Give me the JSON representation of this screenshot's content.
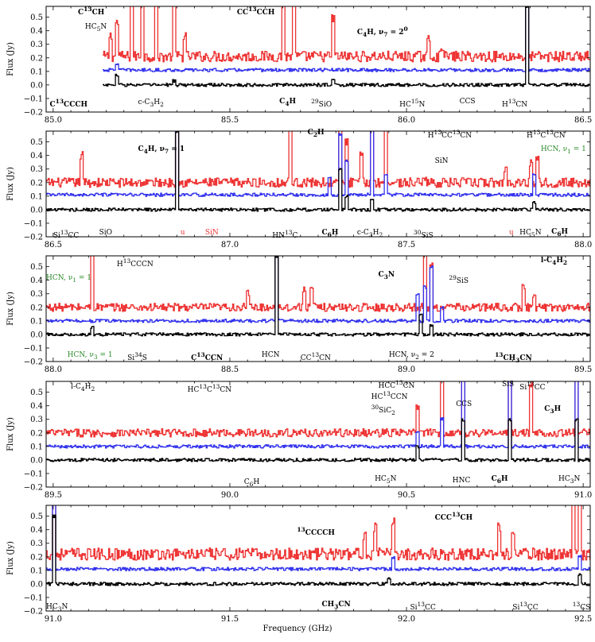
{
  "figure": {
    "xlabel": "Frequency (GHz)",
    "colors": {
      "top": "#ee3333",
      "mid": "#3333ee",
      "bottom": "#000000",
      "green": "#2a8a2a"
    }
  },
  "chart_data": [
    {
      "type": "line",
      "xlim": [
        84.98,
        86.52
      ],
      "ylim": [
        -0.2,
        0.58
      ],
      "ylabel": "Flux (Jy)",
      "xticks": [
        85.0,
        85.5,
        86.0,
        86.5
      ],
      "xtick_labels": [
        "85.0",
        "85.5",
        "86.0",
        "86.5"
      ],
      "yticks": [
        -0.2,
        -0.1,
        0.0,
        0.1,
        0.2,
        0.3,
        0.4,
        0.5
      ],
      "ytick_labels": [
        "−0.2",
        "−0.1",
        "0.0",
        "0.1",
        "0.2",
        "0.3",
        "0.4",
        "0.5"
      ],
      "series": [
        {
          "color": "#ee3333",
          "x_start": 85.14,
          "x_end": 86.52,
          "baseline": 0.21,
          "noise": 0.04,
          "peaks": [
            [
              85.16,
              0.15
            ],
            [
              85.18,
              0.25
            ],
            [
              85.22,
              0.6
            ],
            [
              85.25,
              0.6
            ],
            [
              85.29,
              0.6
            ],
            [
              85.34,
              0.6
            ],
            [
              85.37,
              0.15
            ],
            [
              85.65,
              0.6
            ],
            [
              85.68,
              0.6
            ],
            [
              85.79,
              0.28
            ],
            [
              86.06,
              0.12
            ],
            [
              86.1,
              0.08
            ],
            [
              86.34,
              0.6
            ]
          ]
        },
        {
          "color": "#3333ee",
          "x_start": 85.14,
          "x_end": 86.52,
          "baseline": 0.11,
          "noise": 0.012,
          "peaks": [
            [
              85.18,
              0.05
            ],
            [
              86.34,
              0.6
            ]
          ]
        },
        {
          "color": "#000000",
          "x_start": 85.14,
          "x_end": 86.52,
          "baseline": 0.0,
          "noise": 0.012,
          "peaks": [
            [
              85.18,
              0.07
            ],
            [
              85.34,
              0.03
            ],
            [
              85.79,
              0.05
            ],
            [
              86.34,
              0.58
            ]
          ]
        }
      ],
      "annotations": [
        {
          "html": "C<sup>13</sup>CH",
          "x": 85.07,
          "y": 0.54,
          "bold": true
        },
        {
          "html": "CC<sup>13</sup>CCH",
          "x": 85.52,
          "y": 0.54,
          "bold": true
        },
        {
          "html": "HC<sub>5</sub>N",
          "x": 85.09,
          "y": 0.41
        },
        {
          "html": "C<sub>4</sub>H, ν<sub>7</sub> = 2<sup>0</sup>",
          "x": 85.86,
          "y": 0.39,
          "bold": true
        },
        {
          "html": "C<sup>13</sup>CCCH",
          "x": 84.99,
          "y": -0.14,
          "bold": true
        },
        {
          "html": "c-C<sub>3</sub>H<sub>2</sub>",
          "x": 85.24,
          "y": -0.15
        },
        {
          "html": "C<sub>4</sub>H",
          "x": 85.64,
          "y": -0.14,
          "bold": true
        },
        {
          "html": "<sup>29</sup>SiO",
          "x": 85.73,
          "y": -0.14
        },
        {
          "html": "HC<sup>15</sup>N",
          "x": 85.98,
          "y": -0.14
        },
        {
          "html": "CCS",
          "x": 86.15,
          "y": -0.14
        },
        {
          "html": "H<sup>13</sup>CN",
          "x": 86.27,
          "y": -0.14
        }
      ]
    },
    {
      "type": "line",
      "xlim": [
        86.48,
        88.02
      ],
      "ylim": [
        -0.2,
        0.58
      ],
      "ylabel": "Flux (Jy)",
      "xticks": [
        86.5,
        87.0,
        87.5,
        88.0
      ],
      "xtick_labels": [
        "86.5",
        "87.0",
        "87.5",
        "88.0"
      ],
      "yticks": [
        -0.2,
        -0.1,
        0.0,
        0.1,
        0.2,
        0.3,
        0.4,
        0.5
      ],
      "ytick_labels": [
        "−0.2",
        "−0.1",
        "0.0",
        "0.1",
        "0.2",
        "0.3",
        "0.4",
        "0.5"
      ],
      "series": [
        {
          "color": "#ee3333",
          "x_start": 86.48,
          "x_end": 88.02,
          "baseline": 0.2,
          "noise": 0.035,
          "peaks": [
            [
              86.58,
              0.2
            ],
            [
              86.85,
              0.6
            ],
            [
              87.17,
              0.6
            ],
            [
              87.31,
              0.45
            ],
            [
              87.33,
              0.3
            ],
            [
              87.37,
              0.2
            ],
            [
              87.4,
              0.6
            ],
            [
              87.44,
              0.6
            ],
            [
              87.55,
              0.05
            ],
            [
              87.78,
              0.1
            ],
            [
              87.85,
              0.15
            ],
            [
              87.87,
              0.2
            ]
          ]
        },
        {
          "color": "#3333ee",
          "x_start": 86.48,
          "x_end": 88.02,
          "baseline": 0.11,
          "noise": 0.012,
          "peaks": [
            [
              86.85,
              0.6
            ],
            [
              87.28,
              0.12
            ],
            [
              87.31,
              0.45
            ],
            [
              87.33,
              0.25
            ],
            [
              87.4,
              0.6
            ],
            [
              87.44,
              0.15
            ],
            [
              87.86,
              0.15
            ]
          ]
        },
        {
          "color": "#000000",
          "x_start": 86.48,
          "x_end": 88.02,
          "baseline": 0.0,
          "noise": 0.012,
          "peaks": [
            [
              86.85,
              0.58
            ],
            [
              87.31,
              0.3
            ],
            [
              87.33,
              0.1
            ],
            [
              87.4,
              0.08
            ],
            [
              87.86,
              0.05
            ]
          ]
        }
      ],
      "annotations": [
        {
          "html": "C<sub>4</sub>H, ν<sub>7</sub> = 1",
          "x": 86.74,
          "y": 0.43,
          "bold": true
        },
        {
          "html": "C<sub>2</sub>H",
          "x": 87.22,
          "y": 0.55,
          "bold": true
        },
        {
          "html": "H<sup>13</sup>CC<sup>13</sup>CN",
          "x": 87.56,
          "y": 0.55
        },
        {
          "html": "H<sup>13</sup>C<sup>13</sup>CN",
          "x": 87.84,
          "y": 0.55
        },
        {
          "html": "SiN",
          "x": 87.58,
          "y": 0.34
        },
        {
          "html": "HCN, ν<sub>1</sub> = 1",
          "x": 87.88,
          "y": 0.43,
          "color": "#2a8a2a"
        },
        {
          "html": "Si<sup>13</sup>CC",
          "x": 86.5,
          "y": -0.19
        },
        {
          "html": "SiO",
          "x": 86.63,
          "y": -0.19
        },
        {
          "html": "u",
          "x": 86.86,
          "y": -0.19,
          "color": "#ee3333"
        },
        {
          "html": "SiN",
          "x": 86.93,
          "y": -0.19,
          "color": "#ee3333"
        },
        {
          "html": "HN<sup>13</sup>C",
          "x": 87.12,
          "y": -0.19
        },
        {
          "html": "C<sub>6</sub>H",
          "x": 87.26,
          "y": -0.19,
          "bold": true
        },
        {
          "html": "c-C<sub>3</sub>H<sub>2</sub>",
          "x": 87.36,
          "y": -0.19
        },
        {
          "html": "<sup>30</sup>SiS",
          "x": 87.52,
          "y": -0.19
        },
        {
          "html": "u",
          "x": 87.79,
          "y": -0.19,
          "color": "#ee3333"
        },
        {
          "html": "HC<sub>5</sub>N",
          "x": 87.82,
          "y": -0.19
        },
        {
          "html": "C<sub>6</sub>H",
          "x": 87.91,
          "y": -0.18,
          "bold": true
        }
      ]
    },
    {
      "type": "line",
      "xlim": [
        87.98,
        89.52
      ],
      "ylim": [
        -0.2,
        0.58
      ],
      "ylabel": "Flux (Jy)",
      "xticks": [
        88.0,
        88.5,
        89.0,
        89.5
      ],
      "xtick_labels": [
        "88.0",
        "88.5",
        "89.0",
        "89.5"
      ],
      "yticks": [
        -0.2,
        -0.1,
        0.0,
        0.1,
        0.2,
        0.3,
        0.4,
        0.5
      ],
      "ytick_labels": [
        "−0.2",
        "−0.1",
        "0.0",
        "0.1",
        "0.2",
        "0.3",
        "0.4",
        "0.5"
      ],
      "series": [
        {
          "color": "#ee3333",
          "x_start": 87.98,
          "x_end": 89.52,
          "baseline": 0.2,
          "noise": 0.03,
          "peaks": [
            [
              88.11,
              0.6
            ],
            [
              88.55,
              0.1
            ],
            [
              88.63,
              0.6
            ],
            [
              88.71,
              0.14
            ],
            [
              88.73,
              0.14
            ],
            [
              89.05,
              0.6
            ],
            [
              89.07,
              0.3
            ],
            [
              89.33,
              0.14
            ],
            [
              89.36,
              0.1
            ]
          ]
        },
        {
          "color": "#3333ee",
          "x_start": 87.98,
          "x_end": 89.52,
          "baseline": 0.1,
          "noise": 0.012,
          "peaks": [
            [
              88.63,
              0.6
            ],
            [
              89.03,
              0.2
            ],
            [
              89.05,
              0.25
            ],
            [
              89.07,
              0.4
            ],
            [
              89.1,
              0.1
            ]
          ]
        },
        {
          "color": "#000000",
          "x_start": 87.98,
          "x_end": 89.52,
          "baseline": 0.0,
          "noise": 0.012,
          "peaks": [
            [
              88.11,
              0.05
            ],
            [
              88.63,
              0.58
            ],
            [
              89.04,
              0.15
            ],
            [
              89.07,
              0.07
            ]
          ]
        }
      ],
      "annotations": [
        {
          "html": "H<sup>13</sup>CCCN",
          "x": 88.18,
          "y": 0.52
        },
        {
          "html": "l-C<sub>4</sub>H<sub>2</sub>",
          "x": 89.38,
          "y": 0.53,
          "bold": true
        },
        {
          "html": "C<sub>3</sub>N",
          "x": 88.92,
          "y": 0.42,
          "bold": true
        },
        {
          "html": "<sup>29</sup>SiS",
          "x": 89.12,
          "y": 0.4
        },
        {
          "html": "HCN, ν<sub>1</sub> = 1",
          "x": 87.98,
          "y": 0.4,
          "color": "#2a8a2a"
        },
        {
          "html": "HCN, ν<sub>3</sub> = 1",
          "x": 88.04,
          "y": -0.17,
          "color": "#2a8a2a"
        },
        {
          "html": "Si<sup>34</sup>S",
          "x": 88.21,
          "y": -0.17
        },
        {
          "html": "C<sup>13</sup>CCN",
          "x": 88.39,
          "y": -0.17,
          "bold": true
        },
        {
          "html": "HCN",
          "x": 88.59,
          "y": -0.17
        },
        {
          "html": "CC<sup>13</sup>CN",
          "x": 88.7,
          "y": -0.17
        },
        {
          "html": "HCN, ν<sub>2</sub> = 2",
          "x": 88.95,
          "y": -0.17
        },
        {
          "html": "<sup>13</sup>CH<sub>3</sub>CN",
          "x": 89.25,
          "y": -0.17,
          "bold": true
        }
      ]
    },
    {
      "type": "line",
      "xlim": [
        89.48,
        91.02
      ],
      "ylim": [
        -0.2,
        0.58
      ],
      "ylabel": "Flux (Jy)",
      "xticks": [
        89.5,
        90.0,
        90.5,
        91.0
      ],
      "xtick_labels": [
        "89.5",
        "90.0",
        "90.5",
        "91.0"
      ],
      "yticks": [
        -0.2,
        -0.1,
        0.0,
        0.1,
        0.2,
        0.3,
        0.4,
        0.5
      ],
      "ytick_labels": [
        "−0.2",
        "−0.1",
        "0.0",
        "0.1",
        "0.2",
        "0.3",
        "0.4",
        "0.5"
      ],
      "series": [
        {
          "color": "#ee3333",
          "x_start": 89.48,
          "x_end": 91.02,
          "baseline": 0.2,
          "noise": 0.03,
          "peaks": [
            [
              90.53,
              0.2
            ],
            [
              90.6,
              0.6
            ],
            [
              90.66,
              0.6
            ],
            [
              90.79,
              0.6
            ],
            [
              90.85,
              0.35
            ],
            [
              90.98,
              0.6
            ]
          ]
        },
        {
          "color": "#3333ee",
          "x_start": 89.48,
          "x_end": 91.02,
          "baseline": 0.1,
          "noise": 0.012,
          "peaks": [
            [
              90.53,
              0.1
            ],
            [
              90.6,
              0.2
            ],
            [
              90.66,
              0.6
            ],
            [
              90.79,
              0.6
            ],
            [
              90.98,
              0.6
            ]
          ]
        },
        {
          "color": "#000000",
          "x_start": 89.48,
          "x_end": 91.02,
          "baseline": 0.0,
          "noise": 0.012,
          "peaks": [
            [
              90.53,
              0.1
            ],
            [
              90.66,
              0.3
            ],
            [
              90.79,
              0.3
            ],
            [
              90.98,
              0.3
            ]
          ]
        }
      ],
      "annotations": [
        {
          "html": "l-C<sub>4</sub>H<sub>2</sub>",
          "x": 89.55,
          "y": 0.52
        },
        {
          "html": "HC<sup>13</sup>C<sup>13</sup>CN",
          "x": 89.88,
          "y": 0.52
        },
        {
          "html": "HCC<sup>13</sup>CN",
          "x": 90.42,
          "y": 0.55
        },
        {
          "html": "HC<sup>13</sup>CCN",
          "x": 90.4,
          "y": 0.47
        },
        {
          "html": "<sup>30</sup>SiC<sub>2</sub>",
          "x": 90.4,
          "y": 0.37
        },
        {
          "html": "CCS",
          "x": 90.64,
          "y": 0.39
        },
        {
          "html": "SiS",
          "x": 90.77,
          "y": 0.54
        },
        {
          "html": "Si<sup>13</sup>CC",
          "x": 90.82,
          "y": 0.54
        },
        {
          "html": "C<sub>3</sub>H",
          "x": 90.89,
          "y": 0.36,
          "bold": true
        },
        {
          "html": "C<sub>6</sub>H",
          "x": 90.04,
          "y": -0.18
        },
        {
          "html": "HC<sub>5</sub>N",
          "x": 90.41,
          "y": -0.16
        },
        {
          "html": "HNC",
          "x": 90.63,
          "y": -0.17
        },
        {
          "html": "C<sub>6</sub>H",
          "x": 90.74,
          "y": -0.16,
          "bold": true
        },
        {
          "html": "HC<sub>3</sub>N",
          "x": 90.93,
          "y": -0.16
        }
      ]
    },
    {
      "type": "line",
      "xlim": [
        90.98,
        92.52
      ],
      "ylim": [
        -0.2,
        0.58
      ],
      "ylabel": "Flux (Jy)",
      "xticks": [
        91.0,
        91.5,
        92.0,
        92.5
      ],
      "xtick_labels": [
        "91.0",
        "91.5",
        "92.0",
        "92.5"
      ],
      "yticks": [
        -0.2,
        -0.1,
        0.0,
        0.1,
        0.2,
        0.3,
        0.4,
        0.5
      ],
      "ytick_labels": [
        "−0.2",
        "−0.1",
        "0.0",
        "0.1",
        "0.2",
        "0.3",
        "0.4",
        "0.5"
      ],
      "series": [
        {
          "color": "#ee3333",
          "x_start": 90.98,
          "x_end": 92.52,
          "baseline": 0.22,
          "noise": 0.045,
          "peaks": [
            [
              91.0,
              0.6
            ],
            [
              91.88,
              0.15
            ],
            [
              91.91,
              0.2
            ],
            [
              91.96,
              0.25
            ],
            [
              92.26,
              0.2
            ],
            [
              92.3,
              0.15
            ],
            [
              92.47,
              0.6
            ],
            [
              92.49,
              0.6
            ]
          ]
        },
        {
          "color": "#3333ee",
          "x_start": 90.98,
          "x_end": 92.52,
          "baseline": 0.11,
          "noise": 0.012,
          "peaks": [
            [
              91.0,
              0.6
            ],
            [
              91.96,
              0.08
            ],
            [
              92.49,
              0.1
            ]
          ]
        },
        {
          "color": "#000000",
          "x_start": 90.98,
          "x_end": 92.52,
          "baseline": 0.0,
          "noise": 0.012,
          "peaks": [
            [
              91.0,
              0.5
            ],
            [
              91.95,
              0.04
            ],
            [
              92.49,
              0.07
            ]
          ]
        }
      ],
      "annotations": [
        {
          "html": "<sup>13</sup>CCCCH",
          "x": 91.69,
          "y": 0.38,
          "bold": true
        },
        {
          "html": "CCC<sup>13</sup>CH",
          "x": 92.08,
          "y": 0.49,
          "bold": true
        },
        {
          "html": "HC<sub>3</sub>N",
          "x": 90.98,
          "y": -0.19
        },
        {
          "html": "CH<sub>3</sub>CN",
          "x": 91.76,
          "y": -0.17,
          "bold": true
        },
        {
          "html": "Si<sup>13</sup>CC",
          "x": 92.01,
          "y": -0.17
        },
        {
          "html": "Si<sup>13</sup>CC",
          "x": 92.3,
          "y": -0.17
        },
        {
          "html": "<sup>13</sup>CS",
          "x": 92.47,
          "y": -0.17
        }
      ]
    }
  ]
}
